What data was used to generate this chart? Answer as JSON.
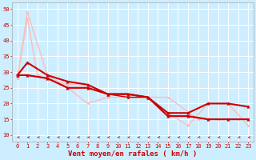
{
  "background_color": "#cceeff",
  "grid_color": "#ffffff",
  "xlabel": "Vent moyen/en rafales ( km/h )",
  "xlim": [
    -0.5,
    23.5
  ],
  "ylim": [
    8,
    52
  ],
  "yticks": [
    10,
    15,
    20,
    25,
    30,
    35,
    40,
    45,
    50
  ],
  "xticks": [
    0,
    1,
    2,
    3,
    4,
    5,
    6,
    7,
    8,
    9,
    10,
    11,
    12,
    13,
    14,
    15,
    16,
    17,
    18,
    19,
    20,
    21,
    22,
    23
  ],
  "lines": [
    {
      "x": [
        0,
        1,
        2,
        5,
        7,
        9,
        11,
        13,
        15,
        17,
        19,
        21,
        23
      ],
      "y": [
        28,
        47,
        29,
        26,
        26,
        23,
        22,
        22,
        17,
        13,
        20,
        20,
        13
      ],
      "color": "#ffbbbb",
      "lw": 1.0,
      "marker": "o",
      "ms": 1.8
    },
    {
      "x": [
        0,
        1,
        3,
        5,
        7,
        9,
        11,
        13,
        15,
        18,
        20,
        22
      ],
      "y": [
        28,
        49,
        29,
        25,
        20,
        22,
        22,
        22,
        22,
        15,
        15,
        15
      ],
      "color": "#ffbbbb",
      "lw": 1.0,
      "marker": "o",
      "ms": 1.8
    },
    {
      "x": [
        0,
        1,
        3,
        5,
        7,
        9,
        11,
        13,
        15,
        17,
        19,
        21,
        23
      ],
      "y": [
        29,
        29,
        28,
        25,
        25,
        23,
        23,
        22,
        16,
        16,
        15,
        15,
        15
      ],
      "color": "#cc0000",
      "lw": 1.5,
      "marker": "^",
      "ms": 2.5
    },
    {
      "x": [
        0,
        1,
        3,
        5,
        7,
        9,
        11,
        13,
        15,
        17,
        19,
        21,
        23
      ],
      "y": [
        29,
        33,
        29,
        27,
        26,
        23,
        23,
        22,
        17,
        17,
        20,
        20,
        19
      ],
      "color": "#cc0000",
      "lw": 1.5,
      "marker": "^",
      "ms": 2.5
    },
    {
      "x": [
        0,
        1,
        3,
        5,
        7,
        9,
        11,
        13,
        15,
        17,
        19,
        21,
        23
      ],
      "y": [
        29,
        29,
        28,
        25,
        25,
        23,
        22,
        22,
        16,
        16,
        15,
        15,
        15
      ],
      "color": "#cc0000",
      "lw": 1.0,
      "marker": "o",
      "ms": 1.8
    }
  ],
  "arrow_color": "#cc0000",
  "axis_fontsize": 6.5,
  "tick_fontsize": 5.0
}
